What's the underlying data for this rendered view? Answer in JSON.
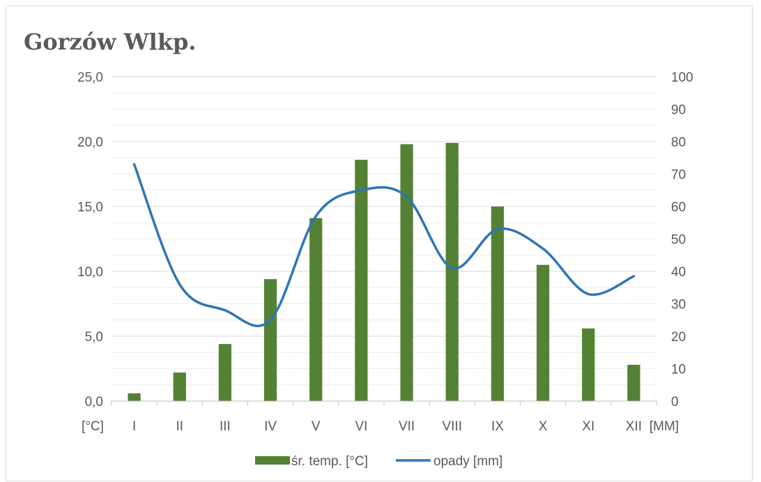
{
  "chart_data": {
    "type": "bar+line",
    "title": "Gorzów Wlkp.",
    "categories": [
      "I",
      "II",
      "III",
      "IV",
      "V",
      "VI",
      "VII",
      "VIII",
      "IX",
      "X",
      "XI",
      "XII"
    ],
    "y_left": {
      "label": "[°C]",
      "range": [
        0,
        25
      ],
      "ticks": [
        "0,0",
        "5,0",
        "10,0",
        "15,0",
        "20,0",
        "25,0"
      ]
    },
    "y_right": {
      "label": "[MM]",
      "range": [
        0,
        100
      ],
      "ticks": [
        "0",
        "10",
        "20",
        "30",
        "40",
        "50",
        "60",
        "70",
        "80",
        "90",
        "100"
      ]
    },
    "series": [
      {
        "name": "śr. temp. [°C]",
        "type": "bar",
        "axis": "left",
        "color": "#548235",
        "values": [
          0.6,
          2.2,
          4.4,
          9.4,
          14.1,
          18.6,
          19.8,
          19.9,
          15.0,
          10.5,
          5.6,
          2.8
        ]
      },
      {
        "name": "opady [mm]",
        "type": "line",
        "axis": "right",
        "smooth": true,
        "color": "#2e75b6",
        "values": [
          73,
          36,
          28,
          25,
          57,
          65,
          63,
          41,
          53,
          47,
          33,
          38.5
        ]
      }
    ],
    "legend_position": "bottom",
    "grid": true
  }
}
